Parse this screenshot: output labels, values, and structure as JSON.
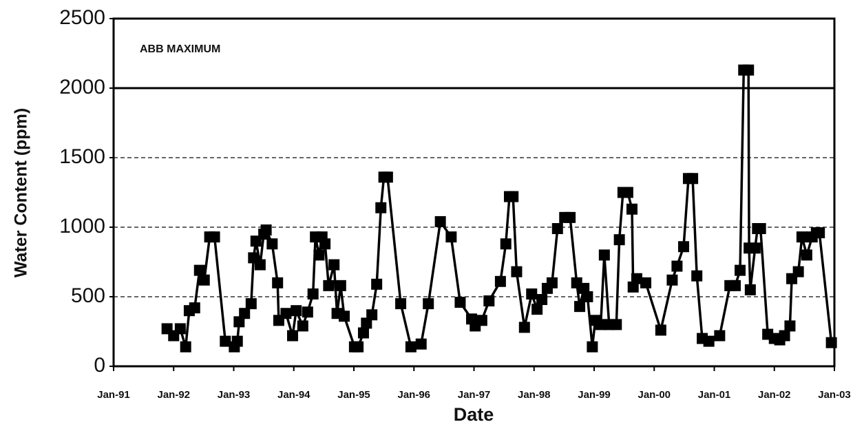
{
  "chart_data": {
    "type": "line",
    "xlabel": "Date",
    "ylabel": "Water Content (ppm)",
    "color": "#000000",
    "marker": "square",
    "grid": true,
    "reference_line": {
      "value": 2000,
      "label": "ABB MAXIMUM"
    },
    "xlim": [
      1991,
      2003
    ],
    "xticks": [
      {
        "value": 1991,
        "label": "Jan-91"
      },
      {
        "value": 1992,
        "label": "Jan-92"
      },
      {
        "value": 1993,
        "label": "Jan-93"
      },
      {
        "value": 1994,
        "label": "Jan-94"
      },
      {
        "value": 1995,
        "label": "Jan-95"
      },
      {
        "value": 1996,
        "label": "Jan-96"
      },
      {
        "value": 1997,
        "label": "Jan-97"
      },
      {
        "value": 1998,
        "label": "Jan-98"
      },
      {
        "value": 1999,
        "label": "Jan-99"
      },
      {
        "value": 2000,
        "label": "Jan-00"
      },
      {
        "value": 2001,
        "label": "Jan-01"
      },
      {
        "value": 2002,
        "label": "Jan-02"
      },
      {
        "value": 2003,
        "label": "Jan-03"
      }
    ],
    "ylim": [
      0,
      2500
    ],
    "yticks": [
      0,
      500,
      1000,
      1500,
      2000,
      2500
    ],
    "x": [
      1991.89,
      1992.0,
      1992.11,
      1992.2,
      1992.26,
      1992.35,
      1992.43,
      1992.51,
      1992.6,
      1992.68,
      1992.86,
      1993.01,
      1993.06,
      1993.09,
      1993.18,
      1993.29,
      1993.33,
      1993.37,
      1993.44,
      1993.5,
      1993.54,
      1993.64,
      1993.73,
      1993.75,
      1993.87,
      1993.98,
      1994.04,
      1994.15,
      1994.23,
      1994.32,
      1994.36,
      1994.42,
      1994.47,
      1994.52,
      1994.58,
      1994.67,
      1994.72,
      1994.78,
      1994.84,
      1995.01,
      1995.07,
      1995.16,
      1995.21,
      1995.3,
      1995.38,
      1995.45,
      1995.5,
      1995.56,
      1995.78,
      1995.95,
      1996.12,
      1996.24,
      1996.44,
      1996.62,
      1996.77,
      1996.96,
      1997.02,
      1997.13,
      1997.25,
      1997.44,
      1997.53,
      1997.59,
      1997.65,
      1997.71,
      1997.84,
      1997.96,
      1998.05,
      1998.13,
      1998.22,
      1998.3,
      1998.39,
      1998.51,
      1998.6,
      1998.71,
      1998.76,
      1998.83,
      1998.89,
      1998.97,
      1999.02,
      1999.11,
      1999.17,
      1999.25,
      1999.37,
      1999.42,
      1999.48,
      1999.56,
      1999.63,
      1999.65,
      1999.71,
      1999.86,
      2000.11,
      2000.3,
      2000.38,
      2000.49,
      2000.57,
      2000.64,
      2000.71,
      2000.8,
      2000.91,
      2001.09,
      2001.26,
      2001.35,
      2001.43,
      2001.49,
      2001.57,
      2001.58,
      2001.6,
      2001.68,
      2001.72,
      2001.77,
      2001.89,
      2002.0,
      2002.09,
      2002.17,
      2002.26,
      2002.29,
      2002.4,
      2002.46,
      2002.54,
      2002.63,
      2002.7,
      2002.75,
      2002.95
    ],
    "values": [
      270,
      220,
      270,
      140,
      400,
      420,
      690,
      620,
      930,
      930,
      180,
      140,
      180,
      320,
      380,
      450,
      780,
      900,
      730,
      950,
      980,
      880,
      600,
      330,
      380,
      220,
      400,
      290,
      390,
      520,
      930,
      800,
      930,
      880,
      580,
      730,
      380,
      580,
      360,
      140,
      140,
      240,
      310,
      370,
      590,
      1140,
      1360,
      1360,
      450,
      140,
      160,
      450,
      1040,
      930,
      460,
      340,
      290,
      330,
      470,
      610,
      880,
      1220,
      1220,
      680,
      280,
      520,
      410,
      480,
      560,
      600,
      990,
      1070,
      1070,
      600,
      430,
      560,
      500,
      140,
      330,
      300,
      800,
      300,
      300,
      910,
      1250,
      1250,
      1130,
      570,
      630,
      600,
      260,
      620,
      720,
      860,
      1350,
      1350,
      650,
      200,
      180,
      220,
      580,
      580,
      690,
      2130,
      2130,
      850,
      550,
      850,
      990,
      990,
      230,
      200,
      190,
      220,
      290,
      630,
      680,
      930,
      800,
      930,
      960,
      960,
      170
    ]
  }
}
